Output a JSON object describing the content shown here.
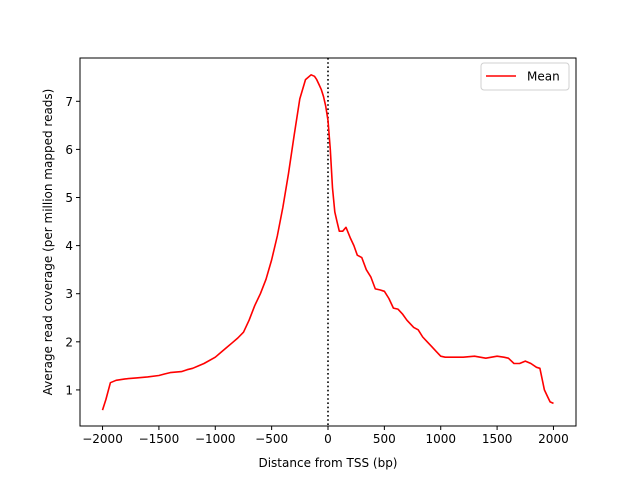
{
  "chart_data": {
    "type": "line",
    "title": "",
    "xlabel": "Distance from TSS (bp)",
    "ylabel": "Average read coverage (per million mapped reads)",
    "xlim": [
      -2200,
      2200
    ],
    "ylim": [
      0.25,
      7.9
    ],
    "xticks": [
      -2000,
      -1500,
      -1000,
      -500,
      0,
      500,
      1000,
      1500,
      2000
    ],
    "xtick_labels": [
      "−2000",
      "−1500",
      "−1000",
      "−500",
      "0",
      "500",
      "1000",
      "1500",
      "2000"
    ],
    "yticks": [
      1,
      2,
      3,
      4,
      5,
      6,
      7
    ],
    "ytick_labels": [
      "1",
      "2",
      "3",
      "4",
      "5",
      "6",
      "7"
    ],
    "grid": false,
    "legend": {
      "position": "upper right",
      "entries": [
        "Mean"
      ]
    },
    "annotations": [
      {
        "type": "vline",
        "x": 0,
        "style": "dotted",
        "color": "#000000"
      }
    ],
    "series": [
      {
        "name": "Mean",
        "color": "#ff0000",
        "x": [
          -2000,
          -1970,
          -1930,
          -1880,
          -1800,
          -1700,
          -1600,
          -1500,
          -1450,
          -1400,
          -1300,
          -1250,
          -1200,
          -1150,
          -1100,
          -1000,
          -950,
          -900,
          -850,
          -800,
          -750,
          -700,
          -650,
          -600,
          -550,
          -500,
          -450,
          -400,
          -350,
          -300,
          -250,
          -200,
          -150,
          -120,
          -100,
          -80,
          -60,
          -40,
          -20,
          0,
          20,
          40,
          60,
          80,
          100,
          130,
          160,
          200,
          230,
          260,
          300,
          340,
          380,
          420,
          460,
          500,
          540,
          580,
          620,
          660,
          700,
          760,
          800,
          840,
          880,
          920,
          960,
          1000,
          1040,
          1080,
          1120,
          1200,
          1300,
          1400,
          1500,
          1560,
          1600,
          1650,
          1700,
          1750,
          1800,
          1850,
          1880,
          1920,
          1950,
          1970,
          2000
        ],
        "values": [
          0.58,
          0.8,
          1.15,
          1.2,
          1.23,
          1.25,
          1.27,
          1.3,
          1.33,
          1.36,
          1.38,
          1.42,
          1.45,
          1.5,
          1.55,
          1.68,
          1.78,
          1.88,
          1.98,
          2.08,
          2.2,
          2.45,
          2.75,
          3.0,
          3.3,
          3.7,
          4.2,
          4.8,
          5.5,
          6.3,
          7.05,
          7.45,
          7.55,
          7.52,
          7.45,
          7.35,
          7.25,
          7.1,
          6.9,
          6.6,
          6.0,
          5.2,
          4.7,
          4.5,
          4.3,
          4.3,
          4.38,
          4.15,
          4.0,
          3.8,
          3.75,
          3.5,
          3.35,
          3.1,
          3.08,
          3.05,
          2.9,
          2.7,
          2.68,
          2.58,
          2.45,
          2.3,
          2.25,
          2.1,
          2.0,
          1.9,
          1.8,
          1.7,
          1.68,
          1.68,
          1.68,
          1.68,
          1.7,
          1.66,
          1.7,
          1.68,
          1.66,
          1.55,
          1.55,
          1.6,
          1.55,
          1.47,
          1.45,
          1.0,
          0.85,
          0.75,
          0.72
        ]
      }
    ]
  }
}
